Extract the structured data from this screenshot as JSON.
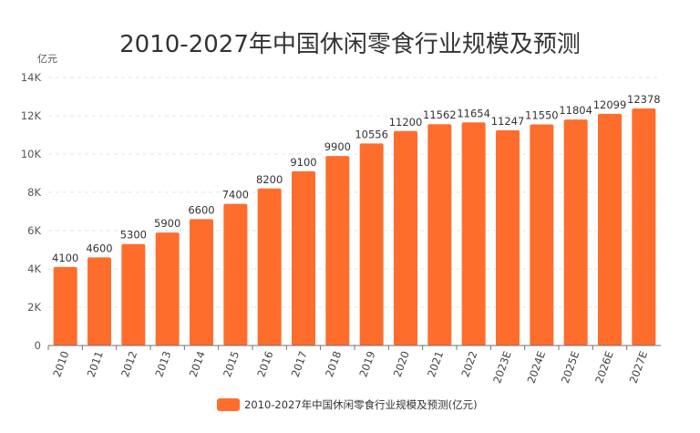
{
  "chart_data": {
    "type": "bar",
    "title": "2010-2027年中国休闲零食行业规模及预测",
    "ylabel": "亿元",
    "xlabel": "",
    "categories": [
      "2010",
      "2011",
      "2012",
      "2013",
      "2014",
      "2015",
      "2016",
      "2017",
      "2018",
      "2019",
      "2020",
      "2021",
      "2022",
      "2023E",
      "2024E",
      "2025E",
      "2026E",
      "2027E"
    ],
    "series": [
      {
        "name": "2010-2027年中国休闲零食行业规模及预测(亿元)",
        "values": [
          4100,
          4600,
          5300,
          5900,
          6600,
          7400,
          8200,
          9100,
          9900,
          10556,
          11200,
          11562,
          11654,
          11247,
          11550,
          11804,
          12099,
          12378
        ]
      }
    ],
    "ylim": [
      0,
      14000
    ],
    "yticks": [
      0,
      2000,
      4000,
      6000,
      8000,
      10000,
      12000,
      14000
    ],
    "ytick_labels": [
      "0",
      "2K",
      "4K",
      "6K",
      "8K",
      "10K",
      "12K",
      "14K"
    ],
    "grid": true,
    "legend": "bottom",
    "bar_color": "#FF6D2D"
  }
}
